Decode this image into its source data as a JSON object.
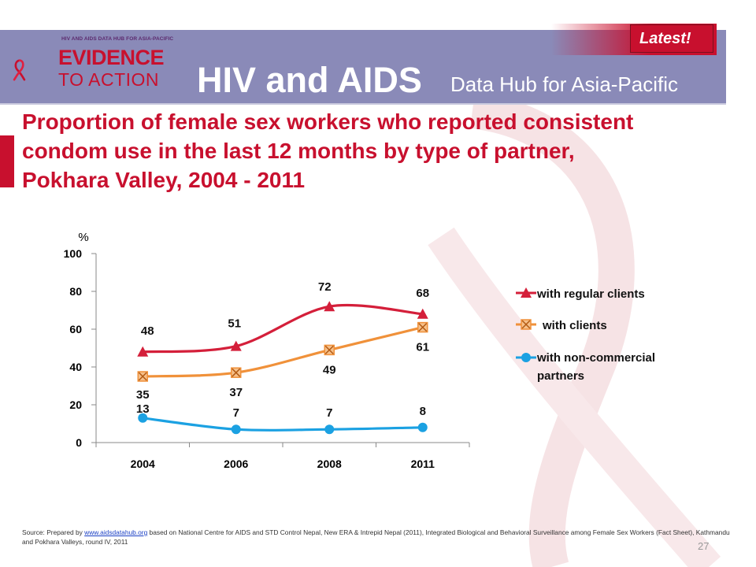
{
  "header": {
    "logo_small_text": "HIV AND AIDS DATA HUB FOR ASIA-PACIFIC",
    "logo_line1": "EVIDENCE",
    "logo_line2": "TO ACTION",
    "title": "HIV and AIDS",
    "subtitle": "Data Hub for Asia-Pacific",
    "badge": "Latest!"
  },
  "slide": {
    "title_lines": [
      "Proportion of female sex workers who reported consistent",
      "condom use in the last 12 months by type of partner,",
      "Pokhara Valley, 2004 - 2011"
    ]
  },
  "chart_data": {
    "type": "line",
    "categories": [
      "2004",
      "2006",
      "2008",
      "2011"
    ],
    "ylabel": "%",
    "ylim": [
      0,
      100
    ],
    "yticks": [
      0,
      20,
      40,
      60,
      80,
      100
    ],
    "grid": false,
    "legend_position": "right",
    "series": [
      {
        "name": "with regular clients",
        "values": [
          48,
          51,
          72,
          68
        ],
        "color": "#d41f3a",
        "marker": "triangle"
      },
      {
        "name": "with clients",
        "values": [
          35,
          37,
          49,
          61
        ],
        "color": "#f0913a",
        "marker": "x-square"
      },
      {
        "name": "with non-commercial partners",
        "values": [
          13,
          7,
          7,
          8
        ],
        "color": "#1ba1e2",
        "marker": "circle"
      }
    ]
  },
  "footer": {
    "source_prefix": "Source: Prepared by ",
    "source_link": "www.aidsdatahub.org",
    "source_rest": "  based on National Centre for AIDS and STD Control Nepal, New ERA & Intrepid Nepal (2011), Integrated Biological and Behavioral Surveillance among Female Sex Workers (Fact Sheet), Kathmandu and Pokhara Valleys, round IV, 2011",
    "page_number": "27"
  }
}
